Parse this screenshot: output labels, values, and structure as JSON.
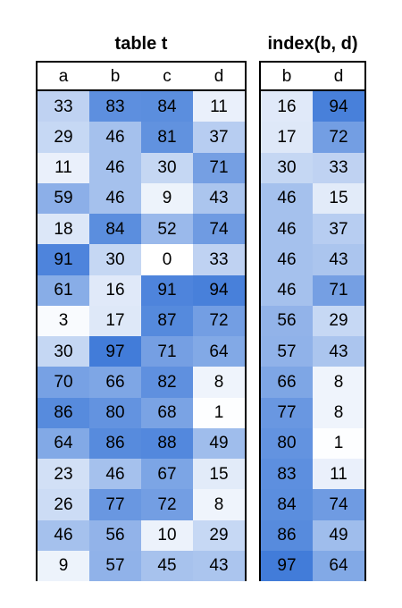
{
  "table": {
    "title": "table t",
    "columns": [
      "a",
      "b",
      "c",
      "d"
    ],
    "rows": [
      [
        33,
        83,
        84,
        11
      ],
      [
        29,
        46,
        81,
        37
      ],
      [
        11,
        46,
        30,
        71
      ],
      [
        59,
        46,
        9,
        43
      ],
      [
        18,
        84,
        52,
        74
      ],
      [
        91,
        30,
        0,
        33
      ],
      [
        61,
        16,
        91,
        94
      ],
      [
        3,
        17,
        87,
        72
      ],
      [
        30,
        97,
        71,
        64
      ],
      [
        70,
        66,
        82,
        8
      ],
      [
        86,
        80,
        68,
        1
      ],
      [
        64,
        86,
        88,
        49
      ],
      [
        23,
        46,
        67,
        15
      ],
      [
        26,
        77,
        72,
        8
      ],
      [
        46,
        56,
        10,
        29
      ],
      [
        9,
        57,
        45,
        43
      ]
    ]
  },
  "index": {
    "title": "index(b, d)",
    "columns": [
      "b",
      "d"
    ],
    "rows": [
      [
        16,
        94
      ],
      [
        17,
        72
      ],
      [
        30,
        33
      ],
      [
        46,
        15
      ],
      [
        46,
        37
      ],
      [
        46,
        43
      ],
      [
        46,
        71
      ],
      [
        56,
        29
      ],
      [
        57,
        43
      ],
      [
        66,
        8
      ],
      [
        77,
        8
      ],
      [
        80,
        1
      ],
      [
        83,
        11
      ],
      [
        84,
        74
      ],
      [
        86,
        49
      ],
      [
        97,
        64
      ]
    ]
  },
  "colors": {
    "low": "#ffffff",
    "high": "#3c78d8",
    "border": "#000000"
  }
}
